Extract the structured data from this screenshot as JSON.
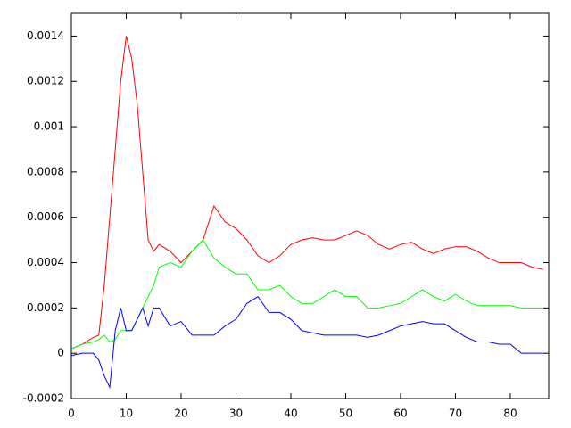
{
  "chart_data": {
    "type": "line",
    "x": [
      0,
      2,
      4,
      5,
      6,
      7,
      8,
      9,
      10,
      11,
      12,
      13,
      14,
      15,
      16,
      18,
      20,
      22,
      24,
      26,
      28,
      30,
      32,
      34,
      36,
      38,
      40,
      42,
      44,
      46,
      48,
      50,
      52,
      54,
      56,
      58,
      60,
      62,
      64,
      66,
      68,
      70,
      72,
      74,
      76,
      78,
      80,
      82,
      84,
      86
    ],
    "series": [
      {
        "color": "#ff0000",
        "values": [
          2e-05,
          4e-05,
          7e-05,
          8e-05,
          0.0003,
          0.0006,
          0.0009,
          0.0012,
          0.0014,
          0.0013,
          0.0011,
          0.0008,
          0.0005,
          0.00045,
          0.00048,
          0.00045,
          0.0004,
          0.00045,
          0.0005,
          0.00065,
          0.00058,
          0.00055,
          0.0005,
          0.00043,
          0.0004,
          0.00043,
          0.00048,
          0.0005,
          0.00051,
          0.0005,
          0.0005,
          0.00052,
          0.00054,
          0.00052,
          0.00048,
          0.00046,
          0.00048,
          0.00049,
          0.00046,
          0.00044,
          0.00046,
          0.00047,
          0.00047,
          0.00045,
          0.00042,
          0.0004,
          0.0004,
          0.0004,
          0.00038,
          0.00037
        ]
      },
      {
        "color": "#00ff00",
        "values": [
          2e-05,
          4e-05,
          5e-05,
          6e-05,
          8e-05,
          5e-05,
          6e-05,
          0.0001,
          0.0001,
          0.0001,
          0.00015,
          0.0002,
          0.00025,
          0.0003,
          0.00038,
          0.0004,
          0.00038,
          0.00045,
          0.0005,
          0.00042,
          0.00038,
          0.00035,
          0.00035,
          0.00028,
          0.00028,
          0.0003,
          0.00025,
          0.00022,
          0.00022,
          0.00025,
          0.00028,
          0.00025,
          0.00025,
          0.0002,
          0.0002,
          0.00021,
          0.00022,
          0.00025,
          0.00028,
          0.00025,
          0.00023,
          0.00026,
          0.00023,
          0.00021,
          0.00021,
          0.00021,
          0.00021,
          0.0002,
          0.0002,
          0.0002
        ]
      },
      {
        "color": "#0000ff",
        "values": [
          -1e-05,
          0,
          0,
          -3e-05,
          -0.0001,
          -0.00015,
          0.0001,
          0.0002,
          0.0001,
          0.0001,
          0.00015,
          0.0002,
          0.00012,
          0.0002,
          0.0002,
          0.00012,
          0.00014,
          8e-05,
          8e-05,
          8e-05,
          0.00012,
          0.00015,
          0.00022,
          0.00025,
          0.00018,
          0.00018,
          0.00015,
          0.0001,
          9e-05,
          8e-05,
          8e-05,
          8e-05,
          8e-05,
          7e-05,
          8e-05,
          0.0001,
          0.00012,
          0.00013,
          0.00014,
          0.00013,
          0.00013,
          0.0001,
          7e-05,
          5e-05,
          5e-05,
          4e-05,
          4e-05,
          0,
          0,
          0
        ]
      }
    ],
    "xlim": [
      0,
      87
    ],
    "xticks": [
      0,
      10,
      20,
      30,
      40,
      50,
      60,
      70,
      80
    ],
    "ylim": [
      -0.0002,
      0.0015
    ],
    "yticks": [
      -0.0002,
      0,
      0.0002,
      0.0004,
      0.0006,
      0.0008,
      0.001,
      0.0012,
      0.0014
    ],
    "grid": false
  }
}
